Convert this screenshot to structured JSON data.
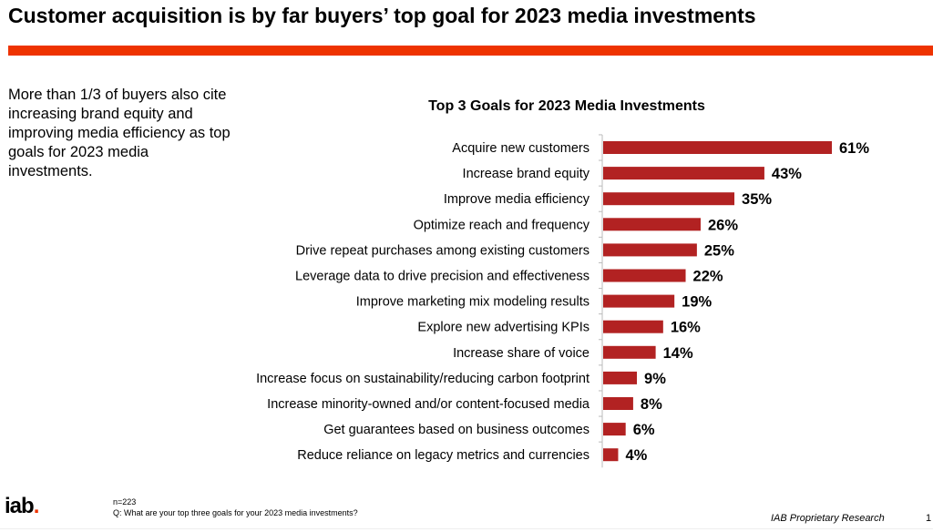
{
  "title": "Customer acquisition is by far buyers’ top goal for 2023 media investments",
  "side_text": "More than 1/3 of buyers also cite increasing brand equity and improving media efficiency as top goals for 2023 media investments.",
  "footer": {
    "n": "n=223",
    "question": "Q: What are your top three goals for your 2023 media investments?",
    "source": "IAB Proprietary Research",
    "page": "1",
    "logo": "iab",
    "logo_dot": "."
  },
  "colors": {
    "bar": "#b22222",
    "accent": "#ee3300"
  },
  "chart_data": {
    "type": "bar",
    "orientation": "horizontal",
    "title": "Top 3 Goals for 2023 Media Investments",
    "categories": [
      "Acquire new customers",
      "Increase brand equity",
      "Improve media efficiency",
      "Optimize reach and frequency",
      "Drive repeat purchases among existing customers",
      "Leverage data to drive precision and effectiveness",
      "Improve marketing mix modeling results",
      "Explore new advertising KPIs",
      "Increase share of voice",
      "Increase focus on sustainability/reducing carbon footprint",
      "Increase minority-owned and/or content-focused media",
      "Get guarantees based on business outcomes",
      "Reduce reliance on legacy metrics and currencies"
    ],
    "values": [
      61,
      43,
      35,
      26,
      25,
      22,
      19,
      16,
      14,
      9,
      8,
      6,
      4
    ],
    "labels": [
      "61%",
      "43%",
      "35%",
      "26%",
      "25%",
      "22%",
      "19%",
      "16%",
      "14%",
      "9%",
      "8%",
      "6%",
      "4%"
    ],
    "unit": "%",
    "xlim": [
      0,
      65
    ]
  }
}
